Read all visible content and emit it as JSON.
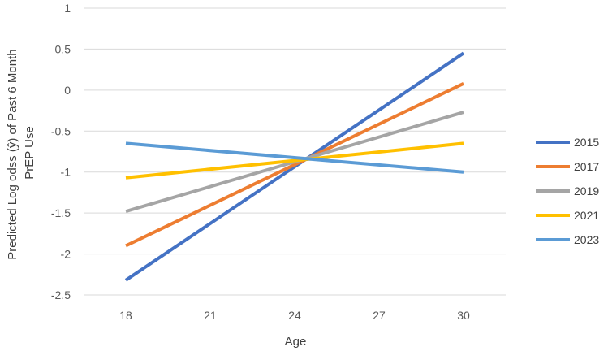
{
  "chart_data": {
    "type": "line",
    "title": "",
    "xlabel": "Age",
    "ylabel_lines": [
      "Predicted Log odss (ŷ) of Past 6 Month",
      "PrEP Use"
    ],
    "xlim": [
      16.5,
      31.5
    ],
    "ylim": [
      -2.5,
      1
    ],
    "x_ticks": [
      18,
      21,
      24,
      27,
      30
    ],
    "y_ticks": [
      1,
      0.5,
      0,
      -0.5,
      -1,
      -1.5,
      -2,
      -2.5
    ],
    "grid": "horizontal",
    "legend_position": "right",
    "series": [
      {
        "name": "2015",
        "color": "#4472c4",
        "x": [
          18,
          30
        ],
        "y": [
          -2.32,
          0.45
        ]
      },
      {
        "name": "2017",
        "color": "#ed7d31",
        "x": [
          18,
          30
        ],
        "y": [
          -1.9,
          0.08
        ]
      },
      {
        "name": "2019",
        "color": "#a5a5a5",
        "x": [
          18,
          30
        ],
        "y": [
          -1.48,
          -0.27
        ]
      },
      {
        "name": "2021",
        "color": "#ffc000",
        "x": [
          18,
          30
        ],
        "y": [
          -1.07,
          -0.65
        ]
      },
      {
        "name": "2023",
        "color": "#5b9bd5",
        "x": [
          18,
          30
        ],
        "y": [
          -0.65,
          -1.0
        ]
      }
    ]
  }
}
